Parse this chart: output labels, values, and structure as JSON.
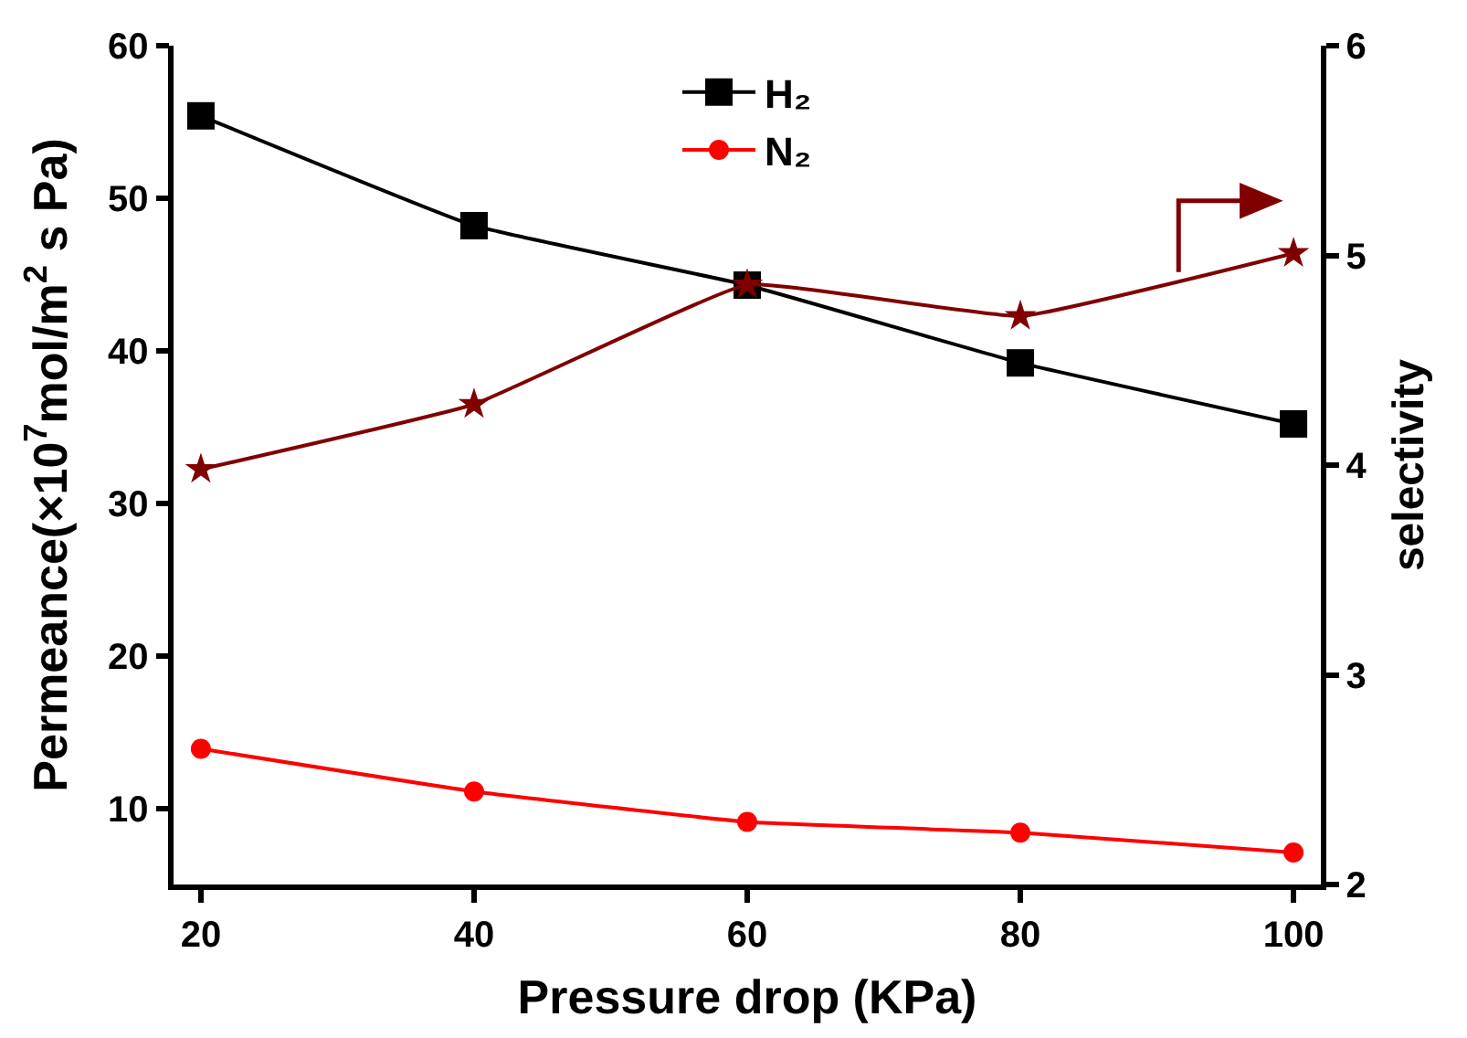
{
  "chart_data": {
    "type": "line",
    "xlabel": "Pressure drop (KPa)",
    "ylabel": "Permeance(×10$^{7}$mol/m$^{2}$ s Pa)",
    "y2label": "selectivity",
    "x": [
      20,
      40,
      60,
      80,
      100
    ],
    "series": [
      {
        "name": "H₂",
        "color": "#000000",
        "marker": "square",
        "values": [
          55.4,
          48.2,
          44.3,
          39.2,
          35.2
        ]
      },
      {
        "name": "N₂",
        "color": "#ff0000",
        "marker": "circle",
        "values": [
          13.9,
          11.1,
          9.1,
          8.4,
          7.1
        ]
      },
      {
        "color": "#800000",
        "marker": "star",
        "axis": "y2",
        "values": [
          3.98,
          4.29,
          4.86,
          4.71,
          5.01
        ]
      }
    ],
    "xlim": [
      18,
      102
    ],
    "xticks": [
      20,
      40,
      60,
      80,
      100
    ],
    "ylim": [
      5,
      60
    ],
    "yticks": [
      10,
      20,
      30,
      40,
      50,
      60
    ],
    "y2lim": [
      2,
      6
    ],
    "y2ticks": [
      2,
      3,
      4,
      5,
      6
    ],
    "legend": "top",
    "line_style": "solid"
  }
}
